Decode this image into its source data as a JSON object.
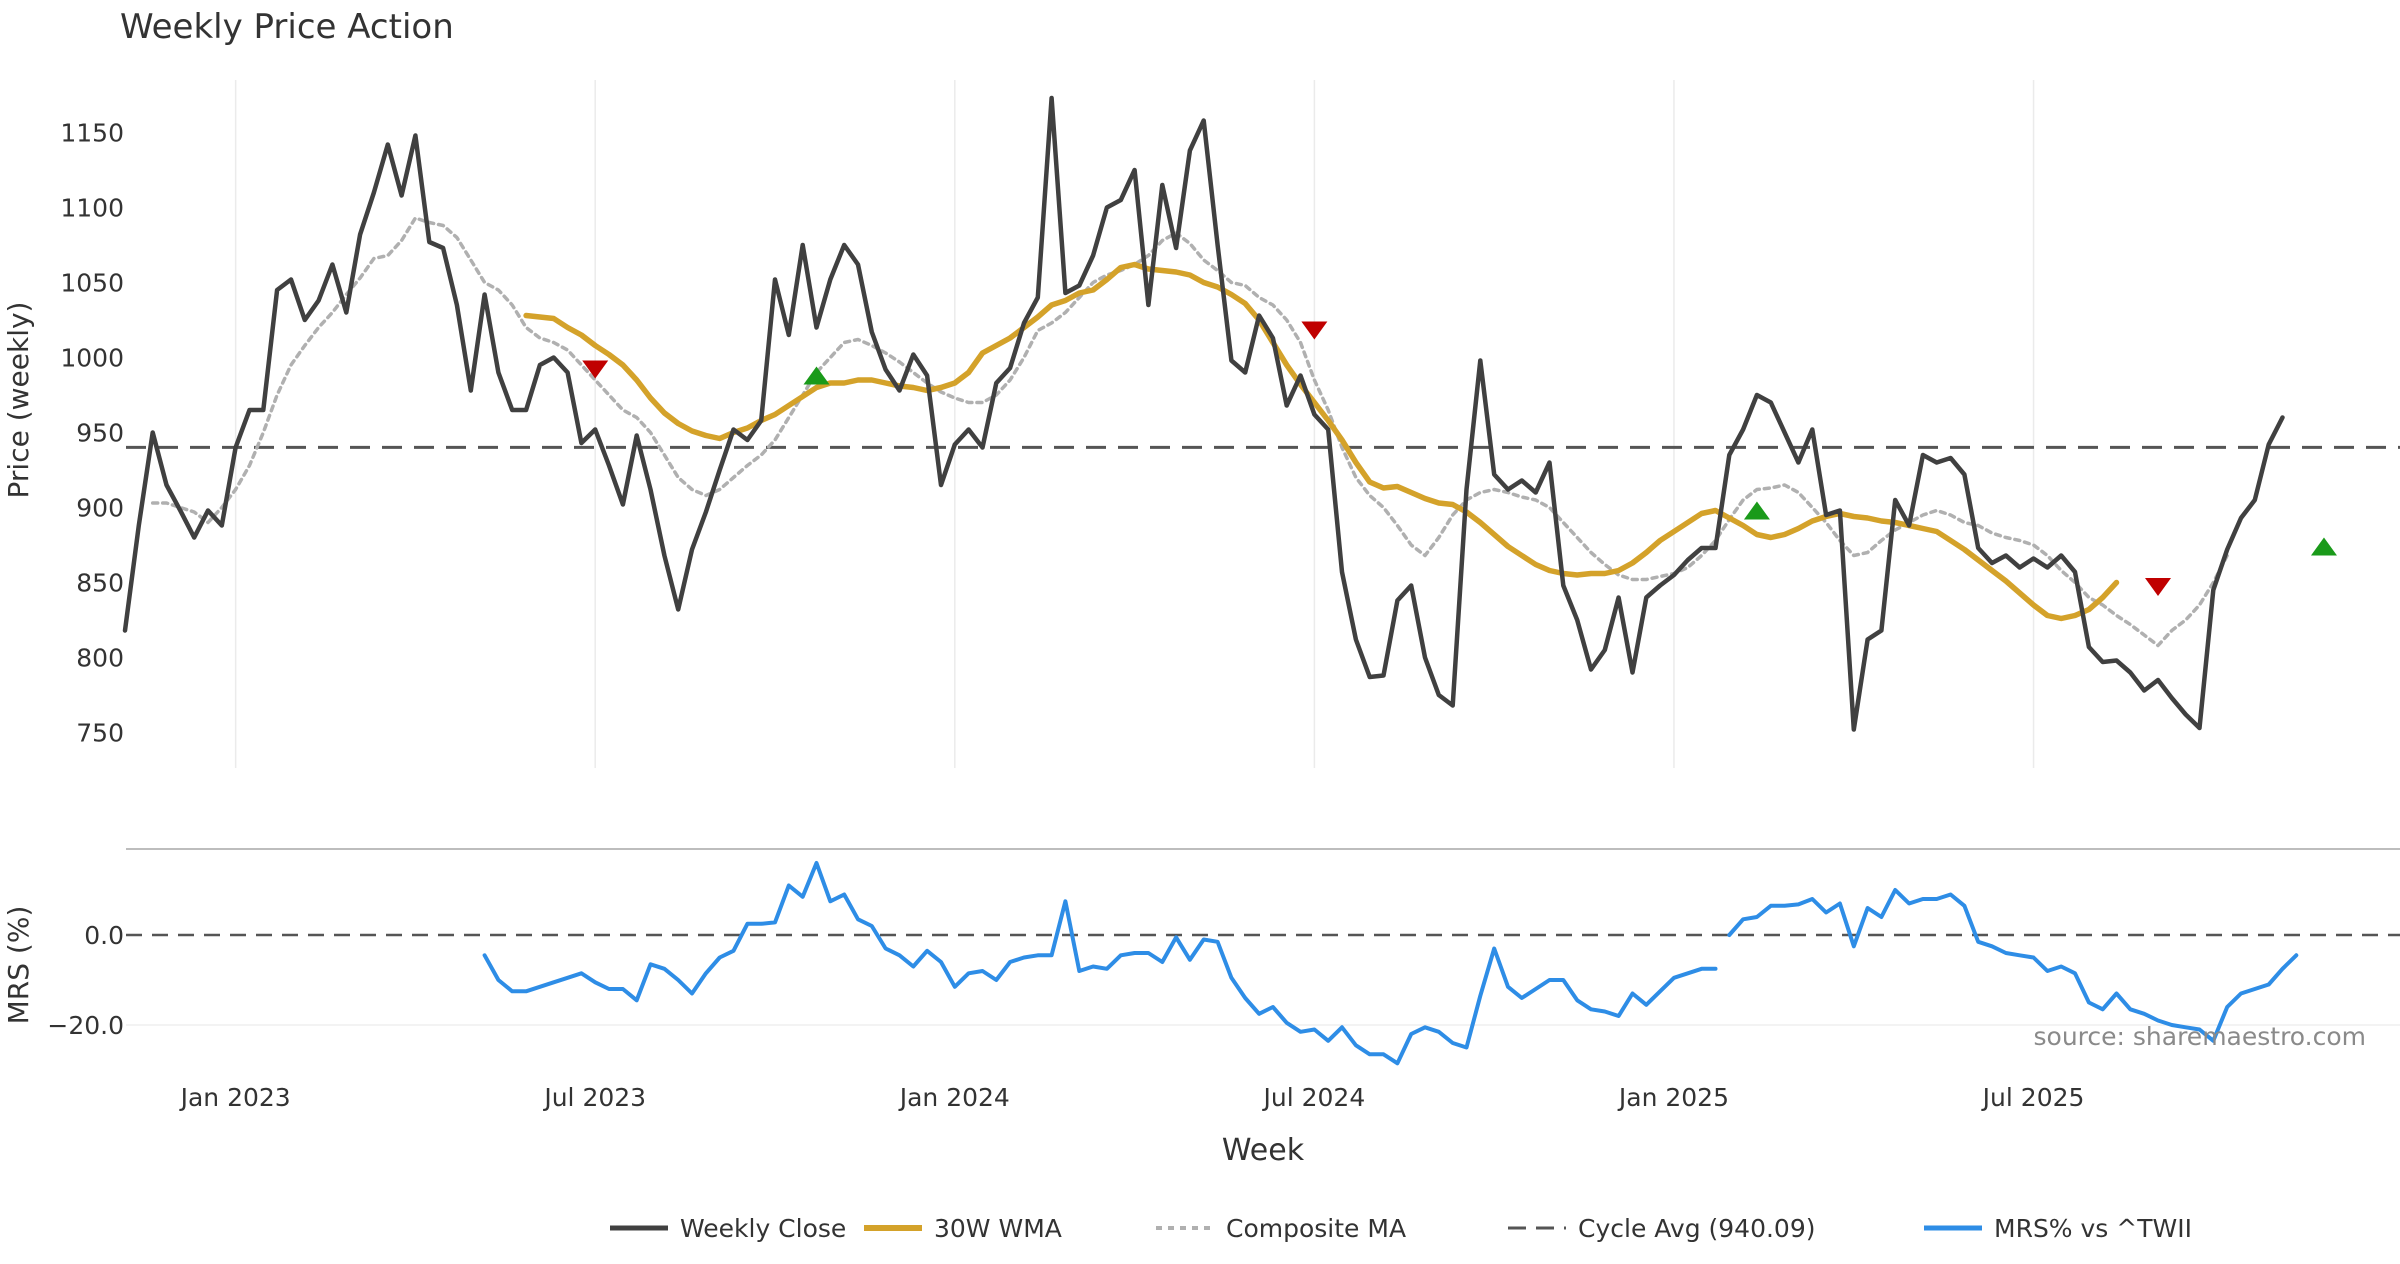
{
  "chart_data": {
    "type": "line",
    "title": "Weekly Price Action",
    "xlabel": "Week",
    "source": "source: sharemaestro.com",
    "x_start": "2022-11-07",
    "x_step_weeks": 1,
    "x_ticks": [
      {
        "label": "Jan 2023",
        "index": 8
      },
      {
        "label": "Jul 2023",
        "index": 34
      },
      {
        "label": "Jan 2024",
        "index": 60
      },
      {
        "label": "Jul 2024",
        "index": 86
      },
      {
        "label": "Jan 2025",
        "index": 112
      },
      {
        "label": "Jul 2025",
        "index": 138
      }
    ],
    "price_panel": {
      "ylabel": "Price (weekly)",
      "ylim": [
        725,
        1185
      ],
      "yticks": [
        750,
        800,
        850,
        900,
        950,
        1000,
        1050,
        1100,
        1150
      ],
      "grid": "x-only",
      "series": [
        {
          "name": "Weekly Close",
          "color": "#404040",
          "style": "solid",
          "start_index": 0,
          "values": [
            818,
            888,
            950,
            915,
            898,
            880,
            898,
            888,
            940,
            965,
            965,
            1045,
            1052,
            1025,
            1038,
            1062,
            1030,
            1082,
            1110,
            1142,
            1108,
            1148,
            1077,
            1073,
            1035,
            978,
            1042,
            990,
            965,
            965,
            995,
            1000,
            990,
            943,
            952,
            928,
            902,
            948,
            912,
            868,
            832,
            872,
            897,
            925,
            952,
            945,
            958,
            1052,
            1015,
            1075,
            1020,
            1052,
            1075,
            1062,
            1017,
            992,
            978,
            1002,
            988,
            915,
            942,
            952,
            940,
            983,
            993,
            1023,
            1040,
            1173,
            1043,
            1048,
            1068,
            1100,
            1105,
            1125,
            1035,
            1115,
            1073,
            1138,
            1158,
            1075,
            998,
            990,
            1028,
            1013,
            968,
            988,
            962,
            952,
            857,
            812,
            787,
            788,
            838,
            848,
            800,
            775,
            768,
            912,
            998,
            922,
            912,
            918,
            910,
            930,
            848,
            825,
            792,
            805,
            840,
            790,
            840,
            848,
            855,
            865,
            873,
            873,
            935,
            952,
            975,
            970,
            950,
            930,
            952,
            895,
            898,
            752,
            812,
            818,
            905,
            888,
            935,
            930,
            933,
            922,
            873,
            863,
            868,
            860,
            866,
            860,
            868,
            857,
            807,
            797,
            798,
            790,
            778,
            785,
            773,
            762,
            753,
            845,
            872,
            893,
            905,
            942,
            960
          ]
        },
        {
          "name": "30W WMA",
          "color": "#D4A22A",
          "style": "solid",
          "start_index": 29,
          "values": [
            1028,
            1027,
            1026,
            1020,
            1015,
            1008,
            1002,
            995,
            985,
            973,
            963,
            956,
            951,
            948,
            946,
            950,
            953,
            958,
            962,
            968,
            974,
            980,
            983,
            983,
            985,
            985,
            983,
            981,
            980,
            978,
            980,
            983,
            990,
            1003,
            1008,
            1013,
            1020,
            1027,
            1035,
            1038,
            1043,
            1045,
            1052,
            1060,
            1062,
            1059,
            1058,
            1057,
            1055,
            1050,
            1047,
            1042,
            1036,
            1025,
            1010,
            995,
            982,
            970,
            958,
            945,
            930,
            917,
            913,
            914,
            910,
            906,
            903,
            902,
            897,
            890,
            882,
            874,
            868,
            862,
            858,
            856,
            855,
            856,
            856,
            858,
            863,
            870,
            878,
            884,
            890,
            896,
            898,
            893,
            888,
            882,
            880,
            882,
            886,
            891,
            894,
            896,
            894,
            893,
            891,
            890,
            888,
            886,
            884,
            878,
            872,
            865,
            858,
            851,
            843,
            835,
            828,
            826,
            828,
            832,
            840,
            850
          ]
        },
        {
          "name": "Composite MA",
          "color": "#B0B0B0",
          "style": "dotted",
          "start_index": 2,
          "values": [
            903,
            903,
            900,
            897,
            890,
            900,
            912,
            928,
            950,
            975,
            995,
            1008,
            1020,
            1030,
            1042,
            1053,
            1066,
            1068,
            1078,
            1093,
            1090,
            1088,
            1080,
            1065,
            1050,
            1045,
            1035,
            1020,
            1013,
            1010,
            1005,
            995,
            985,
            975,
            965,
            960,
            950,
            935,
            920,
            912,
            908,
            912,
            920,
            928,
            935,
            945,
            960,
            975,
            990,
            1000,
            1010,
            1012,
            1008,
            1003,
            997,
            990,
            983,
            977,
            973,
            970,
            970,
            975,
            985,
            1000,
            1018,
            1023,
            1030,
            1040,
            1050,
            1055,
            1058,
            1062,
            1068,
            1078,
            1083,
            1076,
            1065,
            1058,
            1050,
            1048,
            1040,
            1035,
            1025,
            1010,
            985,
            965,
            940,
            920,
            908,
            900,
            888,
            875,
            868,
            880,
            895,
            905,
            910,
            912,
            910,
            907,
            905,
            900,
            890,
            880,
            870,
            862,
            855,
            852,
            852,
            854,
            856,
            860,
            868,
            878,
            892,
            905,
            912,
            913,
            915,
            910,
            900,
            890,
            878,
            868,
            870,
            878,
            885,
            890,
            895,
            898,
            895,
            890,
            888,
            883,
            880,
            878,
            875,
            868,
            858,
            850,
            840,
            835,
            828,
            822,
            815,
            808,
            818,
            825,
            835,
            850,
            868
          ]
        },
        {
          "name": "Cycle Avg (940.09)",
          "color": "#555555",
          "style": "dashed",
          "value": 940.09
        }
      ],
      "markers": [
        {
          "type": "sell",
          "index": 34,
          "y": 992,
          "color": "#C00000"
        },
        {
          "type": "buy",
          "index": 50,
          "y": 988,
          "color": "#1A9A1A"
        },
        {
          "type": "sell",
          "index": 86,
          "y": 1018,
          "color": "#C00000"
        },
        {
          "type": "buy",
          "index": 118,
          "y": 898,
          "color": "#1A9A1A"
        },
        {
          "type": "sell",
          "index": 147,
          "y": 847,
          "color": "#C00000"
        },
        {
          "type": "buy",
          "index": 159,
          "y": 874,
          "color": "#1A9A1A"
        }
      ]
    },
    "mrs_panel": {
      "ylabel": "MRS (%)",
      "ylim": [
        -30,
        20
      ],
      "yticks": [
        0,
        -20
      ],
      "ytick_labels": [
        "0.0",
        "−20.0"
      ],
      "zero_line": "dashed",
      "series": [
        {
          "name": "MRS% vs ^TWII",
          "color": "#2E8DE6",
          "segments": [
            {
              "start_index": 26,
              "values": [
                -4.5,
                -10,
                -12.5,
                -12.5,
                -11.5,
                -10.5,
                -9.5,
                -8.5,
                -10.5,
                -12,
                -12,
                -14.5,
                -6.5,
                -7.5,
                -10,
                -13,
                -8.5,
                -5,
                -3.5,
                2.5,
                2.5,
                2.8,
                11,
                8.5,
                16,
                7.5,
                9,
                3.5,
                2,
                -3,
                -4.5,
                -7,
                -3.5,
                -6,
                -11.5,
                -8.5,
                -8,
                -10,
                -6,
                -5,
                -4.5,
                -4.5,
                7.5,
                -8,
                -7,
                -7.5,
                -4.5,
                -4,
                -4,
                -6,
                -0.5,
                -5.5,
                -1,
                -1.5,
                -9.5,
                -14,
                -17.5,
                -16,
                -19.5,
                -21.5,
                -21,
                -23.5,
                -20.5,
                -24.5,
                -26.5,
                -26.5,
                -28.5,
                -22,
                -20.5,
                -21.5,
                -24,
                -25,
                -13.5,
                -3,
                -11.5,
                -14,
                -12,
                -10,
                -10,
                -14.5,
                -16.5,
                -17,
                -18,
                -13,
                -15.5,
                -12.5,
                -9.5,
                -8.5,
                -7.5,
                -7.5
              ]
            },
            {
              "start_index": 116,
              "values": [
                0,
                3.5,
                4,
                6.5,
                6.5,
                6.8,
                8,
                5,
                7,
                -2.5,
                6,
                4,
                10,
                7,
                8,
                8,
                9,
                6.5,
                -1.5,
                -2.5,
                -4,
                -4.5,
                -5,
                -8,
                -7,
                -8.5,
                -15,
                -16.5,
                -13,
                -16.5,
                -17.5,
                -19,
                -20,
                -20.5,
                -21,
                -23.5,
                -16,
                -13,
                -12,
                -11,
                -7.5,
                -4.5
              ]
            }
          ]
        }
      ]
    },
    "legend": {
      "position": "bottom-center",
      "entries": [
        {
          "label": "Weekly Close",
          "color": "#404040",
          "style": "solid"
        },
        {
          "label": "30W WMA",
          "color": "#D4A22A",
          "style": "solid"
        },
        {
          "label": "Composite MA",
          "color": "#B0B0B0",
          "style": "dotted"
        },
        {
          "label": "Cycle Avg (940.09)",
          "color": "#555555",
          "style": "dashed"
        },
        {
          "label": "MRS% vs ^TWII",
          "color": "#2E8DE6",
          "style": "solid"
        }
      ]
    }
  }
}
